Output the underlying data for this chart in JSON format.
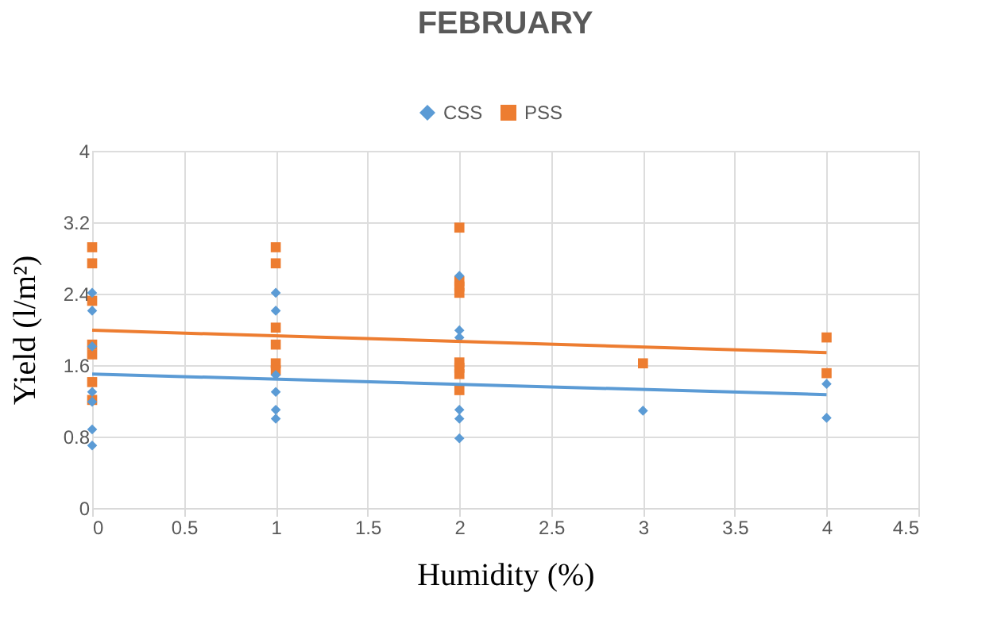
{
  "chart_data": {
    "type": "scatter",
    "title": "FEBRUARY",
    "xlabel": "Humidity (%)",
    "ylabel": "Yield  (l/m²)",
    "xlim": [
      0,
      4.5
    ],
    "xticks": [
      0,
      0.5,
      1,
      1.5,
      2,
      2.5,
      3,
      3.5,
      4,
      4.5
    ],
    "ylim": [
      0,
      4
    ],
    "yticks": [
      0,
      0.8,
      1.6,
      2.4,
      3.2,
      4
    ],
    "grid": true,
    "legend": "top",
    "series": [
      {
        "name": "CSS",
        "color": "#5b9bd5",
        "marker": "diamond",
        "x": [
          0,
          0,
          0,
          0,
          0,
          0,
          0,
          1,
          1,
          1,
          1,
          1,
          1,
          2,
          2,
          2,
          2,
          2,
          2,
          3,
          4,
          4
        ],
        "values": [
          2.41,
          2.21,
          1.81,
          1.3,
          1.19,
          0.88,
          0.7,
          2.41,
          2.21,
          1.49,
          1.3,
          1.1,
          1.0,
          2.6,
          1.99,
          1.91,
          1.1,
          1.0,
          0.78,
          1.09,
          1.39,
          1.01
        ]
      },
      {
        "name": "PSS",
        "color": "#ed7d31",
        "marker": "square",
        "x": [
          0,
          0,
          0,
          0,
          0,
          0,
          0,
          1,
          1,
          1,
          1,
          1,
          1,
          2,
          2,
          2,
          2,
          2,
          2,
          2,
          2,
          3,
          4,
          4
        ],
        "values": [
          2.92,
          2.74,
          2.32,
          1.83,
          1.72,
          1.41,
          1.21,
          2.92,
          2.74,
          2.02,
          1.83,
          1.62,
          1.54,
          3.14,
          2.54,
          2.48,
          2.41,
          1.63,
          1.57,
          1.5,
          1.32,
          1.62,
          1.91,
          1.51
        ]
      },
      {
        "type": "line",
        "color": "#5b9bd5",
        "line_style": "solid",
        "x": [
          0,
          4
        ],
        "values": [
          1.5,
          1.27
        ]
      },
      {
        "type": "line",
        "color": "#ed7d31",
        "line_style": "solid",
        "x": [
          0,
          4
        ],
        "values": [
          1.99,
          1.74
        ]
      }
    ]
  }
}
